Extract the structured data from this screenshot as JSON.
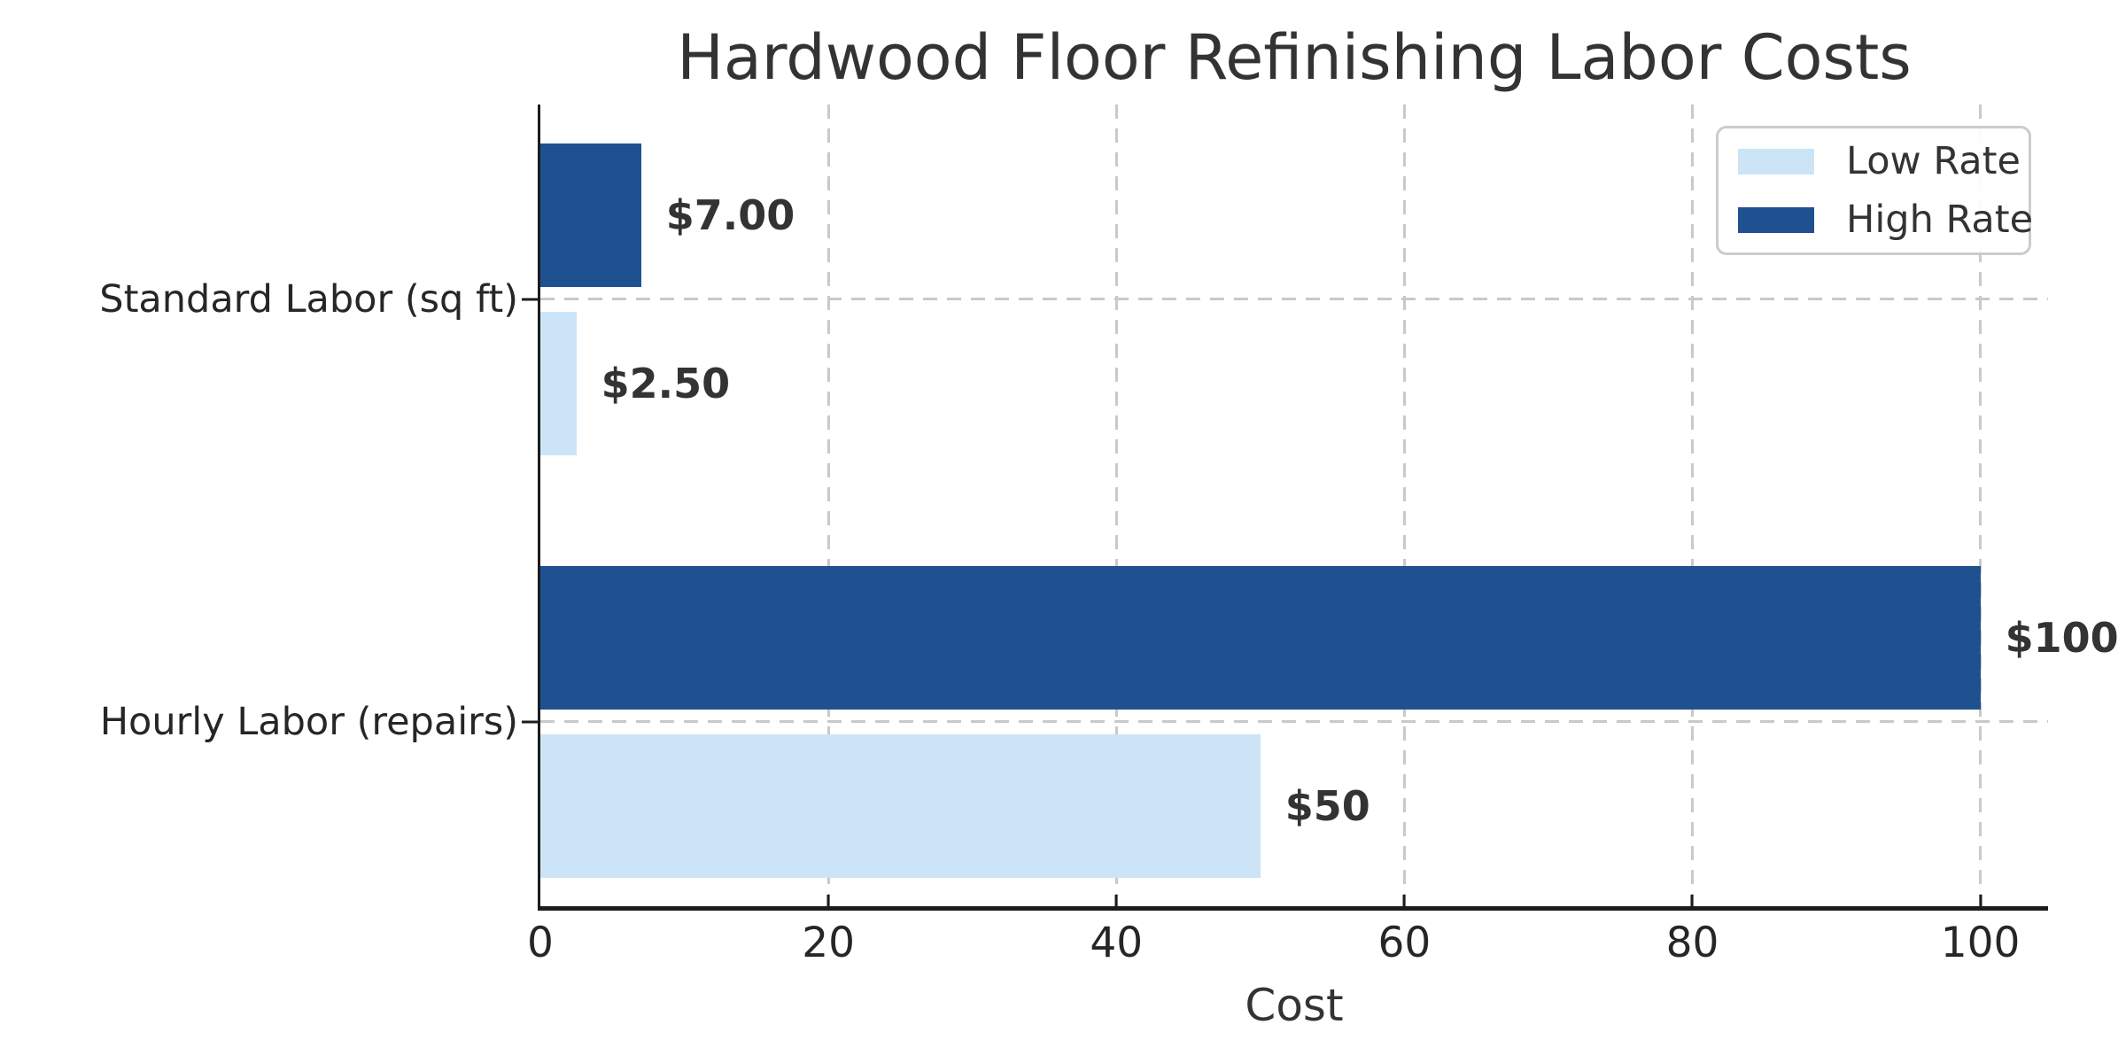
{
  "chart_data": {
    "type": "bar",
    "orientation": "horizontal",
    "title": "Hardwood Floor Refinishing Labor Costs",
    "xlabel": "Cost",
    "ylabel": "",
    "categories": [
      "Standard Labor (sq ft)",
      "Hourly Labor (repairs)"
    ],
    "series": [
      {
        "name": "Low Rate",
        "color": "#cce4f7",
        "values": [
          2.5,
          50
        ],
        "labels": [
          "$2.50",
          "$50"
        ],
        "group_position": "below"
      },
      {
        "name": "High Rate",
        "color": "#1f5191",
        "values": [
          7.0,
          100
        ],
        "labels": [
          "$7.00",
          "$100"
        ],
        "group_position": "above"
      }
    ],
    "x_ticks": [
      "0",
      "20",
      "40",
      "60",
      "80",
      "100"
    ],
    "x_tick_values": [
      0,
      20,
      40,
      60,
      80,
      100
    ],
    "xlim": [
      0,
      104.7
    ],
    "grid": {
      "style": "dashed",
      "color": "#c9c9c9",
      "vertical": true,
      "horizontal": true
    },
    "legend": {
      "position": "upper-right",
      "entries": [
        {
          "label": "Low Rate",
          "color": "#cce4f7"
        },
        {
          "label": "High Rate",
          "color": "#1f5191"
        }
      ]
    },
    "colors": {
      "text": "#333333",
      "tick_text": "#262626",
      "spine": "#1c1c1c",
      "background": "#ffffff"
    }
  }
}
